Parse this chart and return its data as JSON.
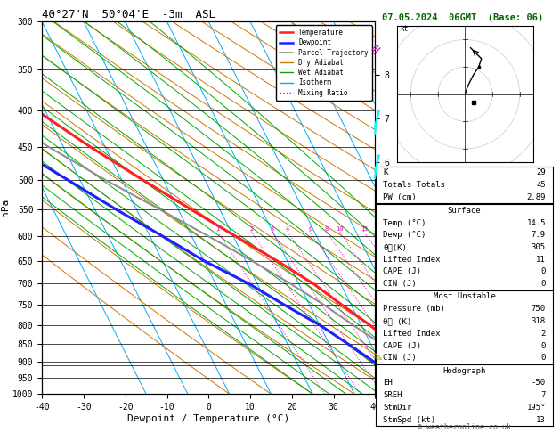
{
  "title_left": "40°27'N  50°04'E  -3m  ASL",
  "title_right": "07.05.2024  06GMT  (Base: 06)",
  "xlabel": "Dewpoint / Temperature (°C)",
  "ylabel_left": "hPa",
  "xlim": [
    -40,
    40
  ],
  "pmin": 300,
  "pmax": 1000,
  "temp_profile": {
    "pressure": [
      1000,
      975,
      950,
      925,
      900,
      850,
      800,
      750,
      700,
      650,
      600,
      550,
      500,
      450,
      400,
      350,
      300
    ],
    "temperature": [
      14.5,
      13.2,
      11.8,
      10.2,
      8.5,
      5.5,
      2.0,
      -2.2,
      -6.5,
      -12.5,
      -19.5,
      -27.0,
      -35.0,
      -43.5,
      -52.0,
      -60.0,
      -65.0
    ]
  },
  "dewp_profile": {
    "pressure": [
      1000,
      975,
      950,
      925,
      900,
      850,
      800,
      750,
      700,
      650,
      600,
      550,
      500,
      450,
      400,
      350,
      300
    ],
    "dewpoint": [
      7.9,
      6.5,
      4.5,
      1.5,
      -1.5,
      -5.5,
      -10.0,
      -16.0,
      -22.0,
      -30.0,
      -37.0,
      -45.0,
      -53.0,
      -62.0,
      -70.0,
      -78.0,
      -85.0
    ]
  },
  "parcel_profile": {
    "pressure": [
      1000,
      950,
      900,
      850,
      800,
      750,
      700,
      650,
      600,
      550,
      500,
      450,
      400,
      350,
      300
    ],
    "temperature": [
      14.5,
      10.5,
      6.5,
      2.5,
      -2.0,
      -6.5,
      -12.0,
      -18.5,
      -26.0,
      -34.5,
      -44.0,
      -53.5,
      -62.5,
      -70.0,
      -76.0
    ]
  },
  "lcl_pressure": 912,
  "colors": {
    "temperature": "#ff2020",
    "dewpoint": "#2020ff",
    "parcel": "#909090",
    "dry_adiabat": "#cc7700",
    "wet_adiabat": "#00aa00",
    "isotherm": "#00aaff",
    "mixing_ratio": "#ee00bb",
    "background": "#ffffff",
    "grid": "#000000",
    "title_right": "#006600"
  },
  "pressure_levels": [
    300,
    350,
    400,
    450,
    500,
    550,
    600,
    650,
    700,
    750,
    800,
    850,
    900,
    950,
    1000
  ],
  "mixing_ratio_lines": [
    1,
    2,
    3,
    4,
    6,
    8,
    10,
    15,
    20,
    25
  ],
  "skew_factor": 45,
  "info_sections": [
    {
      "title": "",
      "rows": [
        [
          "K",
          "29"
        ],
        [
          "Totals Totals",
          "45"
        ],
        [
          "PW (cm)",
          "2.89"
        ]
      ]
    },
    {
      "title": "Surface",
      "rows": [
        [
          "Temp (°C)",
          "14.5"
        ],
        [
          "Dewp (°C)",
          "7.9"
        ],
        [
          "θᴄ(K)",
          "305"
        ],
        [
          "Lifted Index",
          "11"
        ],
        [
          "CAPE (J)",
          "0"
        ],
        [
          "CIN (J)",
          "0"
        ]
      ]
    },
    {
      "title": "Most Unstable",
      "rows": [
        [
          "Pressure (mb)",
          "750"
        ],
        [
          "θᴄ (K)",
          "318"
        ],
        [
          "Lifted Index",
          "2"
        ],
        [
          "CAPE (J)",
          "0"
        ],
        [
          "CIN (J)",
          "0"
        ]
      ]
    },
    {
      "title": "Hodograph",
      "rows": [
        [
          "EH",
          "-50"
        ],
        [
          "SREH",
          "7"
        ],
        [
          "StmDir",
          "195°"
        ],
        [
          "StmSpd (kt)",
          "13"
        ]
      ]
    }
  ],
  "copyright": "© weatheronline.co.uk"
}
